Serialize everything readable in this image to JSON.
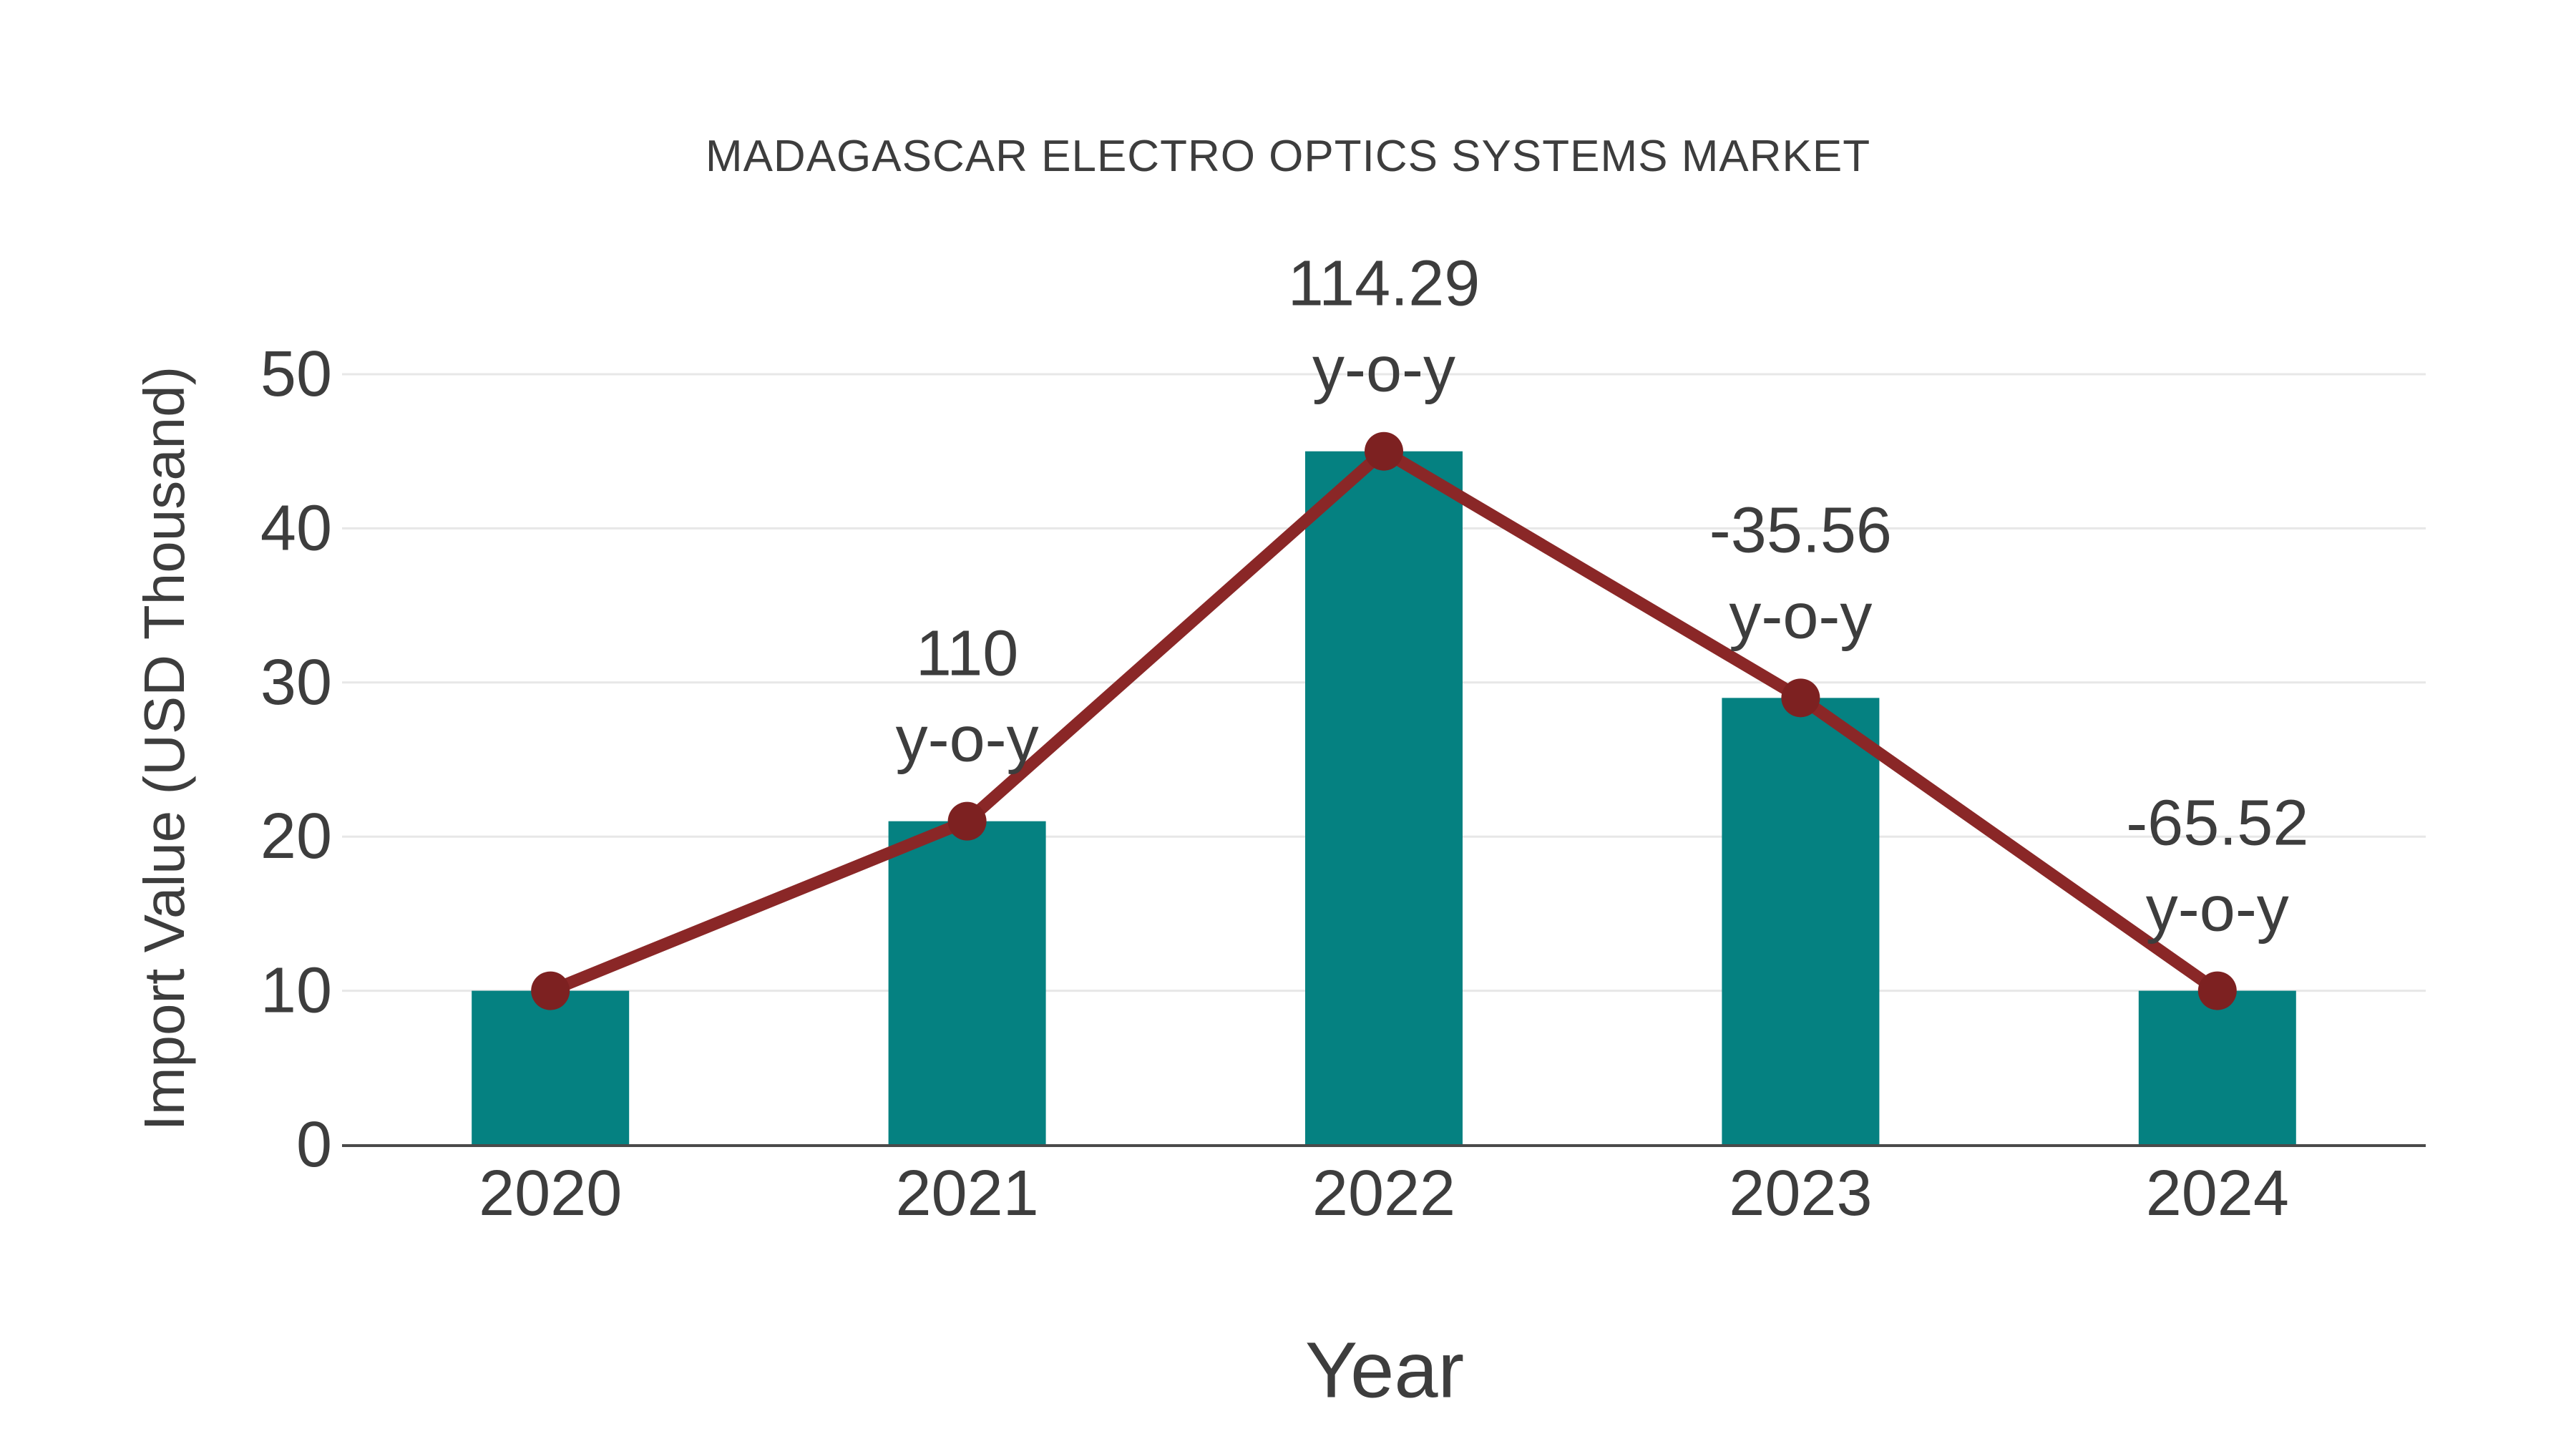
{
  "chart_data": {
    "type": "bar",
    "overlay": "line",
    "title": "MADAGASCAR ELECTRO OPTICS SYSTEMS MARKET",
    "xlabel": "Year",
    "ylabel": "Import Value (USD Thousand)",
    "categories": [
      "2020",
      "2021",
      "2022",
      "2023",
      "2024"
    ],
    "series": [
      {
        "name": "import-value-bars",
        "type": "bar",
        "values": [
          10,
          21,
          45,
          29,
          10
        ]
      },
      {
        "name": "import-value-trend-line",
        "type": "line",
        "values": [
          10,
          21,
          45,
          29,
          10
        ]
      }
    ],
    "annotations": [
      {
        "category": "2021",
        "value_text": "110",
        "suffix": "y-o-y"
      },
      {
        "category": "2022",
        "value_text": "114.29",
        "suffix": "y-o-y"
      },
      {
        "category": "2023",
        "value_text": "-35.56",
        "suffix": "y-o-y"
      },
      {
        "category": "2024",
        "value_text": "-65.52",
        "suffix": "y-o-y"
      }
    ],
    "yticks": [
      0,
      10,
      20,
      30,
      40,
      50
    ],
    "ylim": [
      0,
      50
    ],
    "grid": "horizontal-only",
    "legend_position": "none",
    "colors": {
      "bar": "#058181",
      "line": "#8a2727",
      "marker": "#7d2121",
      "gridline": "#e7e7e7",
      "axis_line": "#4a4a4a",
      "text": "#3d3d3d"
    }
  }
}
